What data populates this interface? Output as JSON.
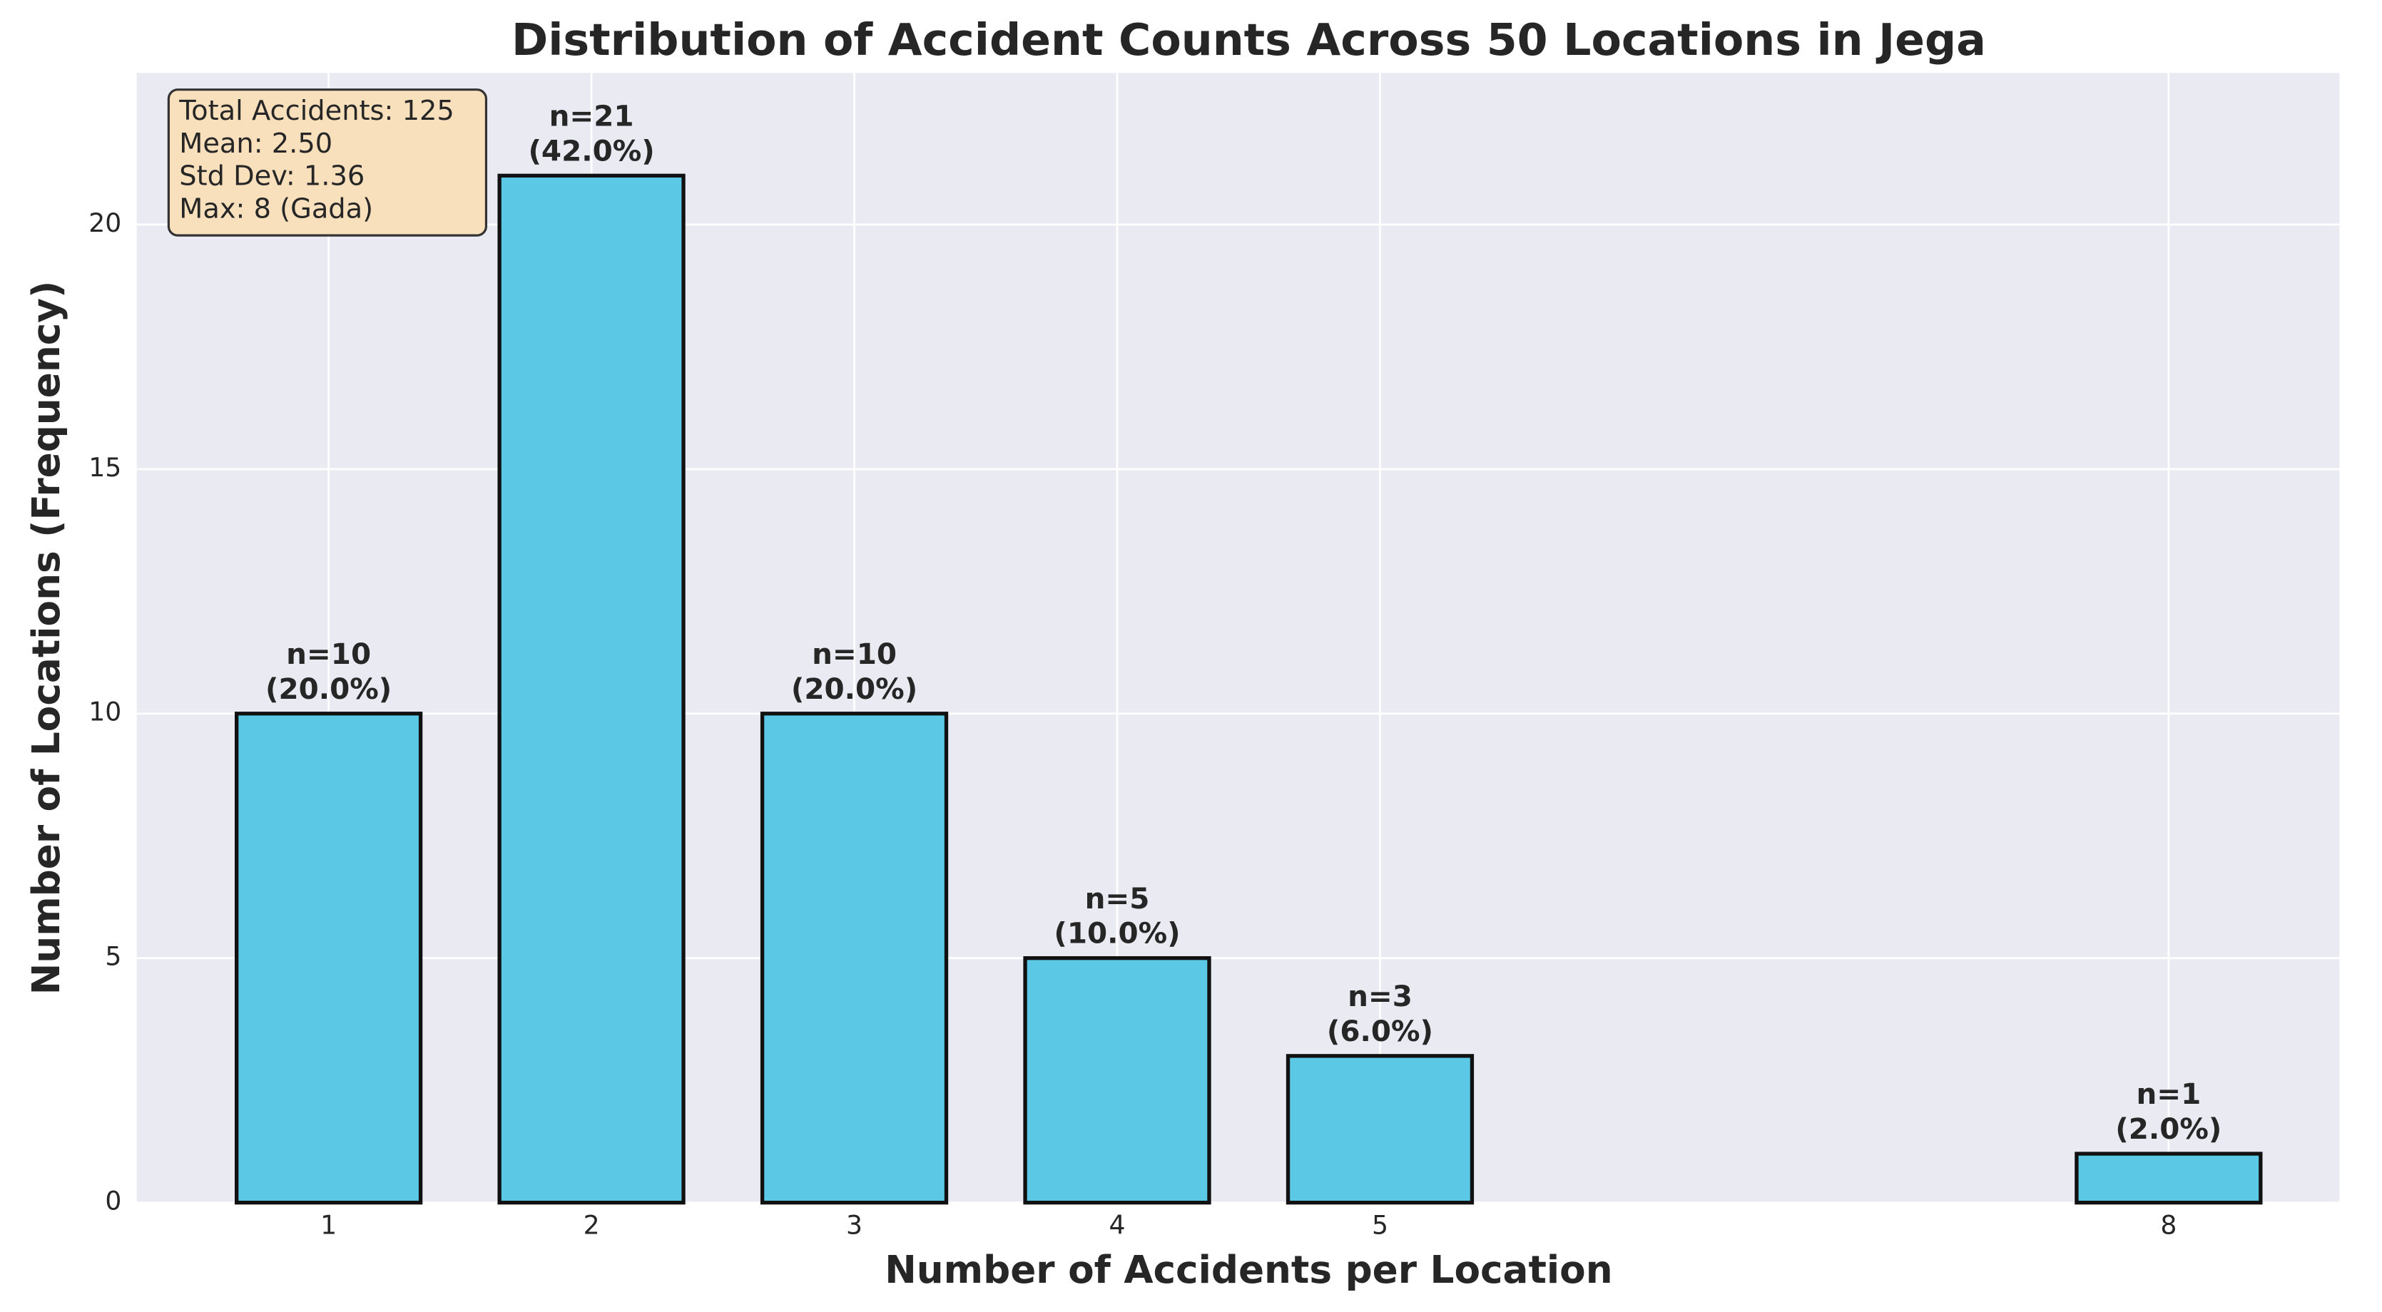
{
  "chart_data": {
    "type": "bar",
    "title": "Distribution of Accident Counts Across 50 Locations in Jega",
    "x_label": "Number of Accidents per Location",
    "y_label": "Number of Locations (Frequency)",
    "x": [
      1,
      2,
      3,
      4,
      5,
      8
    ],
    "values": [
      10,
      21,
      10,
      5,
      3,
      1
    ],
    "value_labels": [
      "n=10",
      "n=21",
      "n=10",
      "n=5",
      "n=3",
      "n=1"
    ],
    "percent_labels": [
      "(20.0%)",
      "(42.0%)",
      "(20.0%)",
      "(10.0%)",
      "(6.0%)",
      "(2.0%)"
    ],
    "color": "#5bc8e6",
    "edge_color": "#111111",
    "xlim": [
      0.27,
      8.65
    ],
    "ylim": [
      0,
      23.1
    ],
    "xticks": [
      1,
      2,
      3,
      4,
      5,
      8
    ],
    "yticks": [
      0,
      5,
      10,
      15,
      20
    ],
    "grid": true,
    "annotation": [
      "Total Accidents: 125",
      "Mean: 2.50",
      "Std Dev: 1.36",
      "Max: 8 (Gada)"
    ]
  }
}
